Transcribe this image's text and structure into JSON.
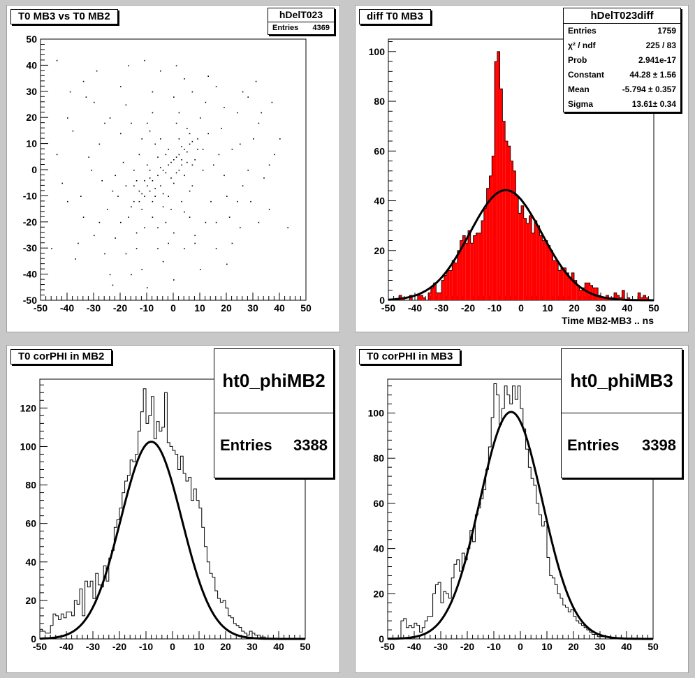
{
  "canvas": {
    "background": "#c8c8c8"
  },
  "pads": [
    {
      "id": "pad1",
      "title": "T0 MB3 vs T0 MB2",
      "stats": {
        "name": "hDelT023",
        "rows": [
          {
            "label": "Entries",
            "value": "4369"
          }
        ]
      }
    },
    {
      "id": "pad2",
      "title": "diff T0 MB3",
      "stats": {
        "name": "hDelT023diff",
        "rows": [
          {
            "label": "Entries",
            "value": "1759"
          },
          {
            "label": "χ² / ndf",
            "value": "225 / 83"
          },
          {
            "label": "Prob",
            "value": "2.941e-17"
          },
          {
            "label": "Constant",
            "value": "44.28 ± 1.56"
          },
          {
            "label": "Mean",
            "value": "-5.794 ± 0.357"
          },
          {
            "label": "Sigma",
            "value": "13.61± 0.34"
          }
        ]
      }
    },
    {
      "id": "pad3",
      "title": "T0 corPHI in MB2",
      "stats": {
        "name": "ht0_phiMB2",
        "rows": [
          {
            "label": "Entries",
            "value": "3388"
          }
        ]
      }
    },
    {
      "id": "pad4",
      "title": "T0 corPHI in MB3",
      "stats": {
        "name": "ht0_phiMB3",
        "rows": [
          {
            "label": "Entries",
            "value": "3398"
          }
        ]
      }
    }
  ],
  "chart_data": [
    {
      "type": "scatter",
      "title": "T0 MB3 vs T0 MB2",
      "xlabel": "",
      "ylabel": "",
      "xlim": [
        -50,
        50
      ],
      "ylim": [
        -50,
        50
      ],
      "xticks": [
        -50,
        -40,
        -30,
        -20,
        -10,
        0,
        10,
        20,
        30,
        40,
        50
      ],
      "yticks": [
        -50,
        -40,
        -30,
        -20,
        -10,
        0,
        10,
        20,
        30,
        40,
        50
      ],
      "marker_color": "#000000",
      "points": [
        [
          -12,
          -9
        ],
        [
          -10,
          -6
        ],
        [
          -8,
          -4
        ],
        [
          -6,
          -2
        ],
        [
          -4,
          0
        ],
        [
          -2,
          2
        ],
        [
          0,
          4
        ],
        [
          2,
          6
        ],
        [
          4,
          8
        ],
        [
          6,
          10
        ],
        [
          -15,
          -12
        ],
        [
          -13,
          -8
        ],
        [
          -11,
          -10
        ],
        [
          -9,
          -3
        ],
        [
          -7,
          -7
        ],
        [
          -5,
          1
        ],
        [
          -3,
          -1
        ],
        [
          -1,
          3
        ],
        [
          1,
          5
        ],
        [
          3,
          9
        ],
        [
          5,
          7
        ],
        [
          7,
          11
        ],
        [
          -18,
          -6
        ],
        [
          -16,
          -14
        ],
        [
          -14,
          -4
        ],
        [
          -12,
          -15
        ],
        [
          -10,
          2
        ],
        [
          -8,
          -12
        ],
        [
          -6,
          5
        ],
        [
          -4,
          -9
        ],
        [
          -2,
          8
        ],
        [
          0,
          -5
        ],
        [
          2,
          12
        ],
        [
          4,
          -2
        ],
        [
          6,
          14
        ],
        [
          8,
          4
        ],
        [
          -20,
          -20
        ],
        [
          -22,
          -2
        ],
        [
          -25,
          -15
        ],
        [
          -28,
          10
        ],
        [
          -30,
          -25
        ],
        [
          -32,
          5
        ],
        [
          -35,
          -10
        ],
        [
          -38,
          15
        ],
        [
          -24,
          20
        ],
        [
          -18,
          25
        ],
        [
          -14,
          -30
        ],
        [
          -10,
          18
        ],
        [
          -6,
          -22
        ],
        [
          -2,
          -28
        ],
        [
          2,
          22
        ],
        [
          6,
          -18
        ],
        [
          10,
          20
        ],
        [
          14,
          -12
        ],
        [
          18,
          16
        ],
        [
          22,
          8
        ],
        [
          26,
          -6
        ],
        [
          30,
          12
        ],
        [
          34,
          -3
        ],
        [
          38,
          6
        ],
        [
          -42,
          -5
        ],
        [
          -40,
          20
        ],
        [
          -26,
          -32
        ],
        [
          -20,
          32
        ],
        [
          -12,
          -38
        ],
        [
          -8,
          30
        ],
        [
          -4,
          -35
        ],
        [
          0,
          28
        ],
        [
          4,
          -30
        ],
        [
          8,
          -25
        ],
        [
          12,
          26
        ],
        [
          16,
          -20
        ],
        [
          20,
          -10
        ],
        [
          24,
          22
        ],
        [
          28,
          28
        ],
        [
          32,
          18
        ],
        [
          36,
          -15
        ],
        [
          -16,
          -40
        ],
        [
          -10,
          -45
        ],
        [
          -44,
          42
        ],
        [
          -36,
          -28
        ],
        [
          -30,
          26
        ],
        [
          0,
          -42
        ],
        [
          4,
          35
        ],
        [
          10,
          -38
        ],
        [
          16,
          32
        ],
        [
          22,
          -28
        ],
        [
          26,
          30
        ],
        [
          -5,
          12
        ],
        [
          -9,
          15
        ],
        [
          -13,
          6
        ],
        [
          -17,
          -18
        ],
        [
          -21,
          -10
        ],
        [
          3,
          -12
        ],
        [
          7,
          -6
        ],
        [
          11,
          0
        ],
        [
          15,
          2
        ],
        [
          19,
          -2
        ],
        [
          -1,
          -15
        ],
        [
          -3,
          -20
        ],
        [
          -7,
          10
        ],
        [
          -11,
          -22
        ],
        [
          -15,
          0
        ],
        [
          -19,
          3
        ],
        [
          -23,
          -8
        ],
        [
          -27,
          -4
        ],
        [
          -31,
          0
        ],
        [
          -34,
          -18
        ],
        [
          -37,
          -34
        ],
        [
          -24,
          -40
        ],
        [
          1,
          18
        ],
        [
          5,
          16
        ],
        [
          9,
          8
        ],
        [
          13,
          14
        ],
        [
          17,
          6
        ],
        [
          21,
          -18
        ],
        [
          25,
          -22
        ],
        [
          29,
          -12
        ],
        [
          33,
          22
        ],
        [
          -6,
          -30
        ],
        [
          -2,
          -10
        ],
        [
          2,
          0
        ],
        [
          6,
          -8
        ],
        [
          -8,
          22
        ],
        [
          -12,
          12
        ],
        [
          -16,
          18
        ],
        [
          -20,
          14
        ],
        [
          -26,
          18
        ],
        [
          -33,
          28
        ],
        [
          -28,
          -20
        ],
        [
          -22,
          -26
        ],
        [
          -18,
          -32
        ],
        [
          -14,
          -24
        ],
        [
          -8,
          -18
        ],
        [
          -4,
          -14
        ],
        [
          0,
          -24
        ],
        [
          4,
          -16
        ],
        [
          8,
          -28
        ],
        [
          12,
          -20
        ],
        [
          16,
          -30
        ],
        [
          20,
          -36
        ],
        [
          24,
          -12
        ],
        [
          28,
          0
        ],
        [
          32,
          -20
        ],
        [
          36,
          2
        ],
        [
          40,
          12
        ],
        [
          -46,
          -30
        ],
        [
          -44,
          6
        ],
        [
          -40,
          -12
        ],
        [
          -39,
          30
        ],
        [
          -34,
          34
        ],
        [
          -29,
          38
        ],
        [
          -23,
          -44
        ],
        [
          -17,
          40
        ],
        [
          -11,
          42
        ],
        [
          -5,
          38
        ],
        [
          1,
          40
        ],
        [
          7,
          30
        ],
        [
          13,
          36
        ],
        [
          19,
          24
        ],
        [
          25,
          10
        ],
        [
          31,
          34
        ],
        [
          37,
          26
        ],
        [
          43,
          -22
        ],
        [
          -3,
          6
        ],
        [
          -1,
          -3
        ],
        [
          1,
          -1
        ],
        [
          3,
          2
        ],
        [
          -7,
          -10
        ],
        [
          -9,
          -8
        ],
        [
          -11,
          -4
        ],
        [
          -13,
          -12
        ],
        [
          5,
          3
        ],
        [
          7,
          2
        ],
        [
          9,
          12
        ],
        [
          11,
          8
        ],
        [
          3,
          4
        ],
        [
          -5,
          -6
        ],
        [
          -9,
          0
        ],
        [
          -15,
          -6
        ]
      ]
    },
    {
      "type": "bar",
      "title": "diff T0 MB3",
      "xlabel": "Time MB2-MB3  ..  ns",
      "ylabel": "",
      "xlim": [
        -50,
        50
      ],
      "ylim": [
        0,
        105
      ],
      "xticks": [
        -50,
        -40,
        -30,
        -20,
        -10,
        0,
        10,
        20,
        30,
        40,
        50
      ],
      "yticks": [
        0,
        20,
        40,
        60,
        80,
        100
      ],
      "bin_width": 1,
      "bin_edges_start": -50,
      "fill_color": "#ff0000",
      "values": [
        0,
        0,
        0,
        0,
        2,
        1,
        0,
        0,
        2,
        0,
        0,
        2,
        2,
        1,
        0,
        3,
        5,
        7,
        3,
        3,
        8,
        10,
        12,
        12,
        16,
        15,
        20,
        24,
        26,
        23,
        28,
        23,
        26,
        27,
        27,
        32,
        37,
        45,
        50,
        58,
        96,
        100,
        85,
        72,
        64,
        62,
        56,
        52,
        42,
        35,
        38,
        33,
        31,
        34,
        27,
        32,
        30,
        26,
        24,
        24,
        22,
        20,
        16,
        16,
        12,
        13,
        13,
        11,
        9,
        11,
        8,
        6,
        4,
        5,
        7,
        7,
        6,
        5,
        5,
        2,
        1,
        1,
        2,
        1,
        1,
        3,
        2,
        1,
        4,
        0,
        1,
        0,
        0,
        0,
        3,
        1,
        2,
        1,
        0,
        0
      ],
      "fit": {
        "type": "gaus",
        "constant": 44.28,
        "mean": -5.794,
        "sigma": 13.61,
        "color": "#000000"
      }
    },
    {
      "type": "line",
      "title": "T0 corPHI in MB2",
      "xlabel": "",
      "ylabel": "",
      "xlim": [
        -50,
        50
      ],
      "ylim": [
        0,
        135
      ],
      "xticks": [
        -50,
        -40,
        -30,
        -20,
        -10,
        0,
        10,
        20,
        30,
        40,
        50
      ],
      "yticks": [
        0,
        20,
        40,
        60,
        80,
        100,
        120
      ],
      "bin_width": 1,
      "bin_edges_start": -50,
      "line_color": "#000000",
      "values": [
        5,
        4,
        3,
        3,
        7,
        13,
        12,
        10,
        13,
        11,
        14,
        14,
        12,
        20,
        18,
        26,
        12,
        30,
        27,
        30,
        21,
        34,
        28,
        27,
        38,
        30,
        42,
        46,
        58,
        62,
        68,
        76,
        82,
        85,
        93,
        92,
        96,
        108,
        118,
        130,
        112,
        116,
        126,
        104,
        113,
        108,
        110,
        128,
        102,
        100,
        98,
        96,
        88,
        95,
        86,
        82,
        84,
        72,
        78,
        72,
        68,
        58,
        48,
        40,
        34,
        32,
        25,
        21,
        19,
        20,
        16,
        12,
        11,
        8,
        7,
        6,
        4,
        3,
        2,
        4,
        3,
        2,
        2,
        1,
        1,
        0,
        0,
        0,
        0,
        0,
        0,
        0,
        0,
        0,
        0,
        0,
        0,
        0,
        0,
        0
      ],
      "fit": {
        "type": "gaus",
        "constant": 102.5,
        "mean": -8.0,
        "sigma": 11.5,
        "color": "#000000"
      }
    },
    {
      "type": "line",
      "title": "T0 corPHI in MB3",
      "xlabel": "",
      "ylabel": "",
      "xlim": [
        -50,
        50
      ],
      "ylim": [
        0,
        115
      ],
      "xticks": [
        -50,
        -40,
        -30,
        -20,
        -10,
        0,
        10,
        20,
        30,
        40,
        50
      ],
      "yticks": [
        0,
        20,
        40,
        60,
        80,
        100
      ],
      "bin_width": 1,
      "bin_edges_start": -50,
      "line_color": "#000000",
      "values": [
        0,
        0,
        0,
        0,
        0,
        8,
        9,
        5,
        6,
        5,
        7,
        6,
        3,
        5,
        8,
        10,
        10,
        20,
        24,
        25,
        16,
        21,
        20,
        18,
        27,
        33,
        35,
        30,
        38,
        35,
        40,
        48,
        43,
        55,
        58,
        62,
        66,
        75,
        85,
        98,
        113,
        108,
        95,
        102,
        112,
        108,
        104,
        112,
        106,
        112,
        102,
        93,
        84,
        76,
        71,
        68,
        60,
        55,
        50,
        52,
        36,
        28,
        27,
        24,
        20,
        18,
        15,
        14,
        12,
        13,
        10,
        8,
        7,
        6,
        5,
        4,
        3,
        2,
        2,
        1,
        1,
        1,
        0,
        0,
        0,
        0,
        0,
        0,
        0,
        0,
        0,
        0,
        0,
        0,
        0,
        0,
        0,
        0,
        0,
        0
      ],
      "fit": {
        "type": "gaus",
        "constant": 100.5,
        "mean": -3.5,
        "sigma": 11.8,
        "color": "#000000"
      }
    }
  ]
}
